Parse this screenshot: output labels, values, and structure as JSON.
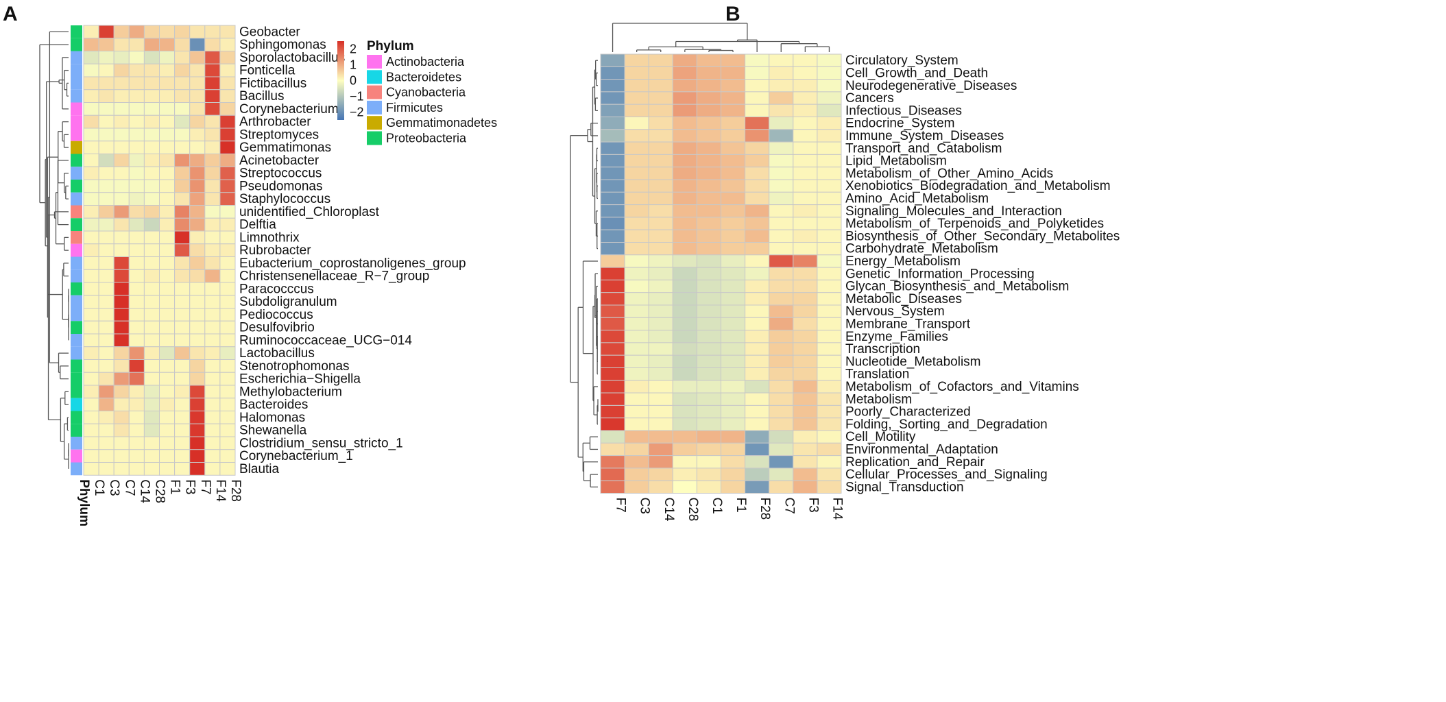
{
  "chart_data": [
    {
      "panel": "A",
      "type": "heatmap",
      "title": "",
      "columns": [
        "C1",
        "C3",
        "C7",
        "C14",
        "C28",
        "F1",
        "F3",
        "F7",
        "F14",
        "F28"
      ],
      "rows": [
        "Geobacter",
        "Sphingomonas",
        "Sporolactobacillus",
        "Fonticella",
        "Fictibacillus",
        "Bacillus",
        "Corynebacterium",
        "Arthrobacter",
        "Streptomyces",
        "Gemmatimonas",
        "Acinetobacter",
        "Streptococcus",
        "Pseudomonas",
        "Staphylococcus",
        "unidentified_Chloroplast",
        "Delftia",
        "Limnothrix",
        "Rubrobacter",
        "Eubacterium_coprostanoligenes_group",
        "Christensenellaceae_R−7_group",
        "Paracocccus",
        "Subdoligranulum",
        "Pediococcus",
        "Desulfovibrio",
        "Ruminococcaceae_UCG−014",
        "Lactobacillus",
        "Stenotrophomonas",
        "Escherichia−Shigella",
        "Methylobacterium",
        "Bacteroides",
        "Halomonas",
        "Shewanella",
        "Clostridium_sensu_stricto_1",
        "Corynebacterium_1",
        "Blautia"
      ],
      "row_phylum": [
        "Proteobacteria",
        "Proteobacteria",
        "Firmicutes",
        "Firmicutes",
        "Firmicutes",
        "Firmicutes",
        "Actinobacteria",
        "Actinobacteria",
        "Actinobacteria",
        "Gemmatimonadetes",
        "Proteobacteria",
        "Firmicutes",
        "Proteobacteria",
        "Firmicutes",
        "Cyanobacteria",
        "Proteobacteria",
        "Cyanobacteria",
        "Actinobacteria",
        "Firmicutes",
        "Firmicutes",
        "Proteobacteria",
        "Firmicutes",
        "Firmicutes",
        "Proteobacteria",
        "Firmicutes",
        "Firmicutes",
        "Proteobacteria",
        "Proteobacteria",
        "Proteobacteria",
        "Bacteroidetes",
        "Proteobacteria",
        "Proteobacteria",
        "Firmicutes",
        "Actinobacteria",
        "Firmicutes"
      ],
      "values": [
        [
          0.2,
          2.3,
          0.6,
          1.0,
          0.5,
          0.4,
          0.5,
          0.3,
          0.3,
          0.3
        ],
        [
          0.8,
          0.7,
          0.3,
          0.3,
          1.0,
          0.9,
          0.4,
          -2.0,
          0.4,
          0.2
        ],
        [
          -0.4,
          -0.2,
          -0.3,
          -0.1,
          -0.5,
          -0.2,
          0.3,
          0.7,
          2.0,
          0.5
        ],
        [
          -0.1,
          0.1,
          0.5,
          0.3,
          0.3,
          0.2,
          0.5,
          0.3,
          2.2,
          0.2
        ],
        [
          0.3,
          0.3,
          0.3,
          0.3,
          0.3,
          0.3,
          0.3,
          0.3,
          2.3,
          0.3
        ],
        [
          0.2,
          0.3,
          0.2,
          0.2,
          0.2,
          0.2,
          0.3,
          0.3,
          2.3,
          0.3
        ],
        [
          -0.1,
          -0.1,
          -0.1,
          -0.1,
          -0.1,
          -0.1,
          -0.1,
          0.3,
          2.2,
          0.5
        ],
        [
          0.4,
          0.1,
          0.2,
          0.1,
          0.2,
          0.1,
          -0.4,
          0.5,
          0.3,
          2.3
        ],
        [
          -0.1,
          -0.1,
          -0.1,
          -0.1,
          -0.1,
          -0.1,
          -0.1,
          0.2,
          0.3,
          2.3
        ],
        [
          0.1,
          0.1,
          0.1,
          0.1,
          0.1,
          0.1,
          0.1,
          0.1,
          0.2,
          2.5
        ],
        [
          0.1,
          -0.6,
          0.5,
          -0.2,
          0.2,
          0.3,
          1.3,
          1.0,
          0.6,
          1.0
        ],
        [
          0.2,
          0.1,
          0.1,
          -0.1,
          0.1,
          0.1,
          0.6,
          1.3,
          0.5,
          1.9
        ],
        [
          -0.1,
          -0.1,
          -0.1,
          -0.1,
          -0.1,
          0.1,
          0.6,
          1.3,
          0.3,
          1.9
        ],
        [
          -0.1,
          -0.1,
          -0.1,
          -0.2,
          -0.1,
          0.1,
          0.3,
          1.1,
          0.3,
          1.9
        ],
        [
          0.2,
          0.6,
          1.2,
          0.4,
          0.5,
          0.2,
          1.5,
          0.9,
          -0.1,
          -0.1
        ],
        [
          -0.2,
          -0.2,
          0.3,
          -0.4,
          -0.7,
          0.2,
          1.4,
          1.0,
          0.2,
          0.2
        ],
        [
          0.1,
          0.1,
          0.1,
          0.1,
          0.1,
          0.1,
          2.5,
          0.2,
          0.1,
          0.1
        ],
        [
          0.2,
          0.1,
          0.1,
          0.1,
          0.1,
          0.1,
          2.0,
          0.4,
          0.2,
          0.2
        ],
        [
          0.1,
          0.1,
          2.2,
          0.1,
          0.1,
          0.1,
          0.3,
          0.6,
          0.3,
          0.1
        ],
        [
          0.1,
          0.1,
          2.2,
          0.1,
          0.2,
          0.1,
          0.3,
          0.4,
          0.9,
          0.1
        ],
        [
          0.1,
          0.1,
          2.5,
          0.1,
          0.1,
          0.1,
          0.1,
          0.1,
          0.1,
          0.1
        ],
        [
          0.1,
          0.1,
          2.5,
          0.1,
          0.1,
          0.1,
          0.1,
          0.1,
          0.1,
          0.1
        ],
        [
          0.1,
          0.1,
          2.5,
          0.1,
          0.1,
          0.1,
          0.1,
          0.1,
          0.1,
          0.1
        ],
        [
          0.1,
          0.1,
          2.5,
          0.1,
          0.1,
          0.1,
          0.1,
          0.1,
          0.1,
          0.1
        ],
        [
          0.1,
          0.1,
          2.5,
          0.1,
          0.1,
          0.1,
          0.1,
          0.1,
          0.1,
          0.1
        ],
        [
          0.2,
          0.1,
          0.5,
          1.3,
          0.2,
          -0.4,
          0.7,
          0.3,
          0.2,
          -0.3
        ],
        [
          0.1,
          0.1,
          0.3,
          2.3,
          0.1,
          0.1,
          0.1,
          0.5,
          0.1,
          0.1
        ],
        [
          0.1,
          0.3,
          1.2,
          1.7,
          0.1,
          0.1,
          0.1,
          0.5,
          0.1,
          0.1
        ],
        [
          0.2,
          1.2,
          0.5,
          0.2,
          -0.3,
          0.1,
          0.2,
          2.2,
          0.1,
          0.1
        ],
        [
          0.1,
          0.9,
          0.2,
          0.2,
          -0.3,
          0.2,
          0.1,
          2.3,
          0.1,
          0.1
        ],
        [
          0.1,
          0.2,
          0.4,
          0.1,
          -0.4,
          0.1,
          0.1,
          2.4,
          0.1,
          0.1
        ],
        [
          0.1,
          0.1,
          0.3,
          0.1,
          -0.4,
          0.1,
          0.1,
          2.4,
          0.1,
          0.1
        ],
        [
          0.1,
          0.1,
          0.1,
          0.1,
          0.1,
          0.1,
          0.1,
          2.5,
          0.1,
          0.1
        ],
        [
          0.1,
          0.1,
          0.1,
          0.1,
          0.1,
          0.1,
          0.1,
          2.5,
          0.1,
          0.1
        ],
        [
          0.1,
          0.1,
          0.1,
          0.1,
          0.1,
          0.1,
          0.1,
          2.5,
          0.1,
          0.1
        ]
      ],
      "scale_range": [
        -2.5,
        2.5
      ],
      "colorbar_ticks": [
        2,
        1,
        0,
        -1,
        -2
      ],
      "colorbar_tick_labels": [
        "2",
        "1",
        "0",
        "−1",
        "−2"
      ],
      "annotation_label": "Phylum",
      "legend_title": "Phylum",
      "legend": [
        {
          "name": "Actinobacteria",
          "color": "#ff73ef"
        },
        {
          "name": "Bacteroidetes",
          "color": "#17d7e6"
        },
        {
          "name": "Cyanobacteria",
          "color": "#f7837d"
        },
        {
          "name": "Firmicutes",
          "color": "#7caef9"
        },
        {
          "name": "Gemmatimonadetes",
          "color": "#c9ab00"
        },
        {
          "name": "Proteobacteria",
          "color": "#16cd68"
        }
      ]
    },
    {
      "panel": "B",
      "type": "heatmap",
      "title": "",
      "columns": [
        "F7",
        "C3",
        "C14",
        "C28",
        "C1",
        "F1",
        "F28",
        "C7",
        "F3",
        "F14"
      ],
      "rows": [
        "Circulatory_System",
        "Cell_Growth_and_Death",
        "Neurodegenerative_Diseases",
        "Cancers",
        "Infectious_Diseases",
        "Endocrine_System",
        "Immune_System_Diseases",
        "Transport_and_Catabolism",
        "Lipid_Metabolism",
        "Metabolism_of_Other_Amino_Acids",
        "Xenobiotics_Biodegradation_and_Metabolism",
        "Amino_Acid_Metabolism",
        "Signaling_Molecules_and_Interaction",
        "Metabolism_of_Terpenoids_and_Polyketides",
        "Biosynthesis_of_Other_Secondary_Metabolites",
        "Carbohydrate_Metabolism",
        "Energy_Metabolism",
        "Genetic_Information_Processing",
        "Glycan_Biosynthesis_and_Metabolism",
        "Metabolic_Diseases",
        "Nervous_System",
        "Membrane_Transport",
        "Enzyme_Families",
        "Transcription",
        "Nucleotide_Metabolism",
        "Translation",
        "Metabolism_of_Cofactors_and_Vitamins",
        "Metabolism",
        "Poorly_Characterized",
        "Folding,_Sorting_and_Degradation",
        "Cell_Motility",
        "Environmental_Adaptation",
        "Replication_and_Repair",
        "Cellular_Processes_and_Signaling",
        "Signal_Transduction"
      ],
      "values": [
        [
          -1.6,
          0.5,
          0.5,
          1.0,
          0.8,
          0.8,
          -0.1,
          0.1,
          0.1,
          -0.1
        ],
        [
          -1.9,
          0.5,
          0.5,
          1.1,
          0.9,
          0.9,
          -0.1,
          0.2,
          0.1,
          -0.1
        ],
        [
          -1.9,
          0.5,
          0.5,
          1.0,
          0.9,
          0.8,
          0.1,
          0.2,
          0.2,
          -0.1
        ],
        [
          -1.9,
          0.5,
          0.5,
          1.2,
          1.0,
          0.9,
          0.1,
          0.6,
          0.2,
          -0.2
        ],
        [
          -1.7,
          0.5,
          0.5,
          1.2,
          1.0,
          0.9,
          0.1,
          0.3,
          0.2,
          -0.4
        ],
        [
          -1.5,
          0.1,
          0.4,
          0.8,
          0.7,
          0.6,
          1.7,
          -0.3,
          0.1,
          0.2
        ],
        [
          -1.2,
          0.4,
          0.4,
          0.8,
          0.7,
          0.6,
          1.3,
          -1.3,
          0.1,
          0.2
        ],
        [
          -1.9,
          0.5,
          0.5,
          1.0,
          0.9,
          0.7,
          0.5,
          -0.2,
          0.1,
          0.1
        ],
        [
          -1.9,
          0.5,
          0.5,
          1.0,
          0.9,
          0.8,
          0.6,
          -0.1,
          0.1,
          0.1
        ],
        [
          -1.9,
          0.5,
          0.5,
          1.0,
          0.9,
          0.8,
          0.4,
          -0.1,
          0.1,
          0.1
        ],
        [
          -1.9,
          0.5,
          0.5,
          0.9,
          0.8,
          0.7,
          0.4,
          -0.1,
          0.1,
          0.1
        ],
        [
          -1.9,
          0.5,
          0.5,
          0.9,
          0.8,
          0.8,
          0.4,
          -0.2,
          0.1,
          0.1
        ],
        [
          -1.9,
          0.5,
          0.4,
          0.8,
          0.8,
          0.7,
          0.9,
          0.1,
          0.2,
          0.1
        ],
        [
          -2.0,
          0.4,
          0.4,
          0.8,
          0.7,
          0.6,
          0.7,
          0.1,
          0.1,
          0.1
        ],
        [
          -1.9,
          0.4,
          0.4,
          0.8,
          0.7,
          0.6,
          0.8,
          0.1,
          0.2,
          0.1
        ],
        [
          -1.9,
          0.4,
          0.4,
          0.8,
          0.7,
          0.6,
          0.6,
          0.1,
          0.1,
          0.1
        ],
        [
          0.6,
          -0.1,
          -0.2,
          -0.4,
          -0.5,
          -0.3,
          0.1,
          2.0,
          1.5,
          -0.1
        ],
        [
          2.3,
          -0.2,
          -0.3,
          -0.7,
          -0.5,
          -0.4,
          -0.2,
          0.4,
          0.4,
          0.1
        ],
        [
          2.3,
          -0.1,
          -0.2,
          -0.7,
          -0.5,
          -0.4,
          0.2,
          0.4,
          0.4,
          0.1
        ],
        [
          2.2,
          -0.2,
          -0.3,
          -0.7,
          -0.5,
          -0.4,
          0.2,
          0.5,
          0.5,
          0.1
        ],
        [
          2.0,
          -0.2,
          -0.3,
          -0.7,
          -0.5,
          -0.4,
          0.1,
          0.8,
          0.5,
          0.1
        ],
        [
          2.0,
          -0.2,
          -0.3,
          -0.7,
          -0.5,
          -0.4,
          0.1,
          1.0,
          0.4,
          0.1
        ],
        [
          2.2,
          -0.2,
          -0.3,
          -0.7,
          -0.5,
          -0.4,
          0.2,
          0.6,
          0.5,
          0.1
        ],
        [
          2.2,
          -0.2,
          -0.2,
          -0.6,
          -0.5,
          -0.4,
          0.2,
          0.6,
          0.5,
          0.1
        ],
        [
          2.3,
          -0.2,
          -0.3,
          -0.7,
          -0.5,
          -0.4,
          0.2,
          0.6,
          0.5,
          0.1
        ],
        [
          2.3,
          -0.2,
          -0.3,
          -0.7,
          -0.5,
          -0.4,
          0.2,
          0.5,
          0.5,
          0.1
        ],
        [
          2.3,
          0.2,
          0.1,
          -0.3,
          -0.3,
          -0.2,
          -0.5,
          0.4,
          0.8,
          0.2
        ],
        [
          2.3,
          0.1,
          0.1,
          -0.5,
          -0.4,
          -0.3,
          0.1,
          0.4,
          0.7,
          0.3
        ],
        [
          2.3,
          0.1,
          0.1,
          -0.5,
          -0.4,
          -0.3,
          0.1,
          0.4,
          0.7,
          0.3
        ],
        [
          2.4,
          0.1,
          0.1,
          -0.5,
          -0.4,
          -0.3,
          0.1,
          0.4,
          0.7,
          0.3
        ],
        [
          -0.5,
          0.8,
          0.8,
          0.8,
          0.9,
          0.9,
          -1.5,
          -0.6,
          0.2,
          0.1
        ],
        [
          0.4,
          0.5,
          1.2,
          0.6,
          0.5,
          0.5,
          -1.9,
          -0.4,
          0.3,
          0.4
        ],
        [
          1.6,
          0.8,
          1.2,
          0.1,
          0.1,
          0.4,
          -0.5,
          -1.9,
          0.3,
          0.1
        ],
        [
          1.8,
          0.6,
          0.5,
          0.2,
          0.3,
          0.5,
          -0.9,
          -0.4,
          0.8,
          0.3
        ],
        [
          1.7,
          0.6,
          0.4,
          0.0,
          0.2,
          0.5,
          -1.8,
          0.4,
          0.9,
          0.4
        ]
      ],
      "scale_range": [
        -2.5,
        2.5
      ]
    }
  ],
  "panel_labels": {
    "a": "A",
    "b": "B"
  },
  "colors": {
    "scale_low": "#4575b4",
    "scale_mid": "#fefec0",
    "scale_high": "#d73027",
    "cell_border": "#c8c8c8",
    "dendrogram": "#555555"
  }
}
